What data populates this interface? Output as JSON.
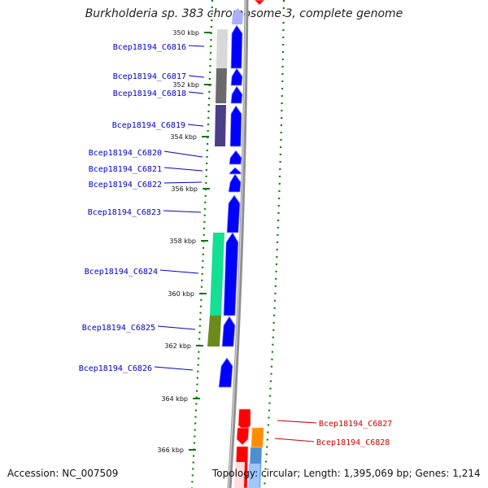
{
  "title": "Burkholderia sp. 383 chromosome 3, complete genome",
  "accession": "Accession: NC_007509",
  "info": "Topology: circular; Length: 1,395,069 bp; Genes: 1,214",
  "colors": {
    "backbone": "#888888",
    "forward_gene": "#0000ff",
    "reverse_gene": "#ff0000",
    "forward_label": "#0000cc",
    "reverse_label": "#cc0000",
    "ring_dots": "#0a7a0a"
  },
  "ticks": [
    {
      "label": "350 kbp"
    },
    {
      "label": "352 kbp"
    },
    {
      "label": "354 kbp"
    },
    {
      "label": "356 kbp"
    },
    {
      "label": "358 kbp"
    },
    {
      "label": "360 kbp"
    },
    {
      "label": "362 kbp"
    },
    {
      "label": "364 kbp"
    },
    {
      "label": "366 kbp"
    }
  ],
  "genes": [
    {
      "name": "Bcep18194_C6816",
      "strand": "forward"
    },
    {
      "name": "Bcep18194_C6817",
      "strand": "forward"
    },
    {
      "name": "Bcep18194_C6818",
      "strand": "forward"
    },
    {
      "name": "Bcep18194_C6819",
      "strand": "forward"
    },
    {
      "name": "Bcep18194_C6820",
      "strand": "forward"
    },
    {
      "name": "Bcep18194_C6821",
      "strand": "forward"
    },
    {
      "name": "Bcep18194_C6822",
      "strand": "forward"
    },
    {
      "name": "Bcep18194_C6823",
      "strand": "forward"
    },
    {
      "name": "Bcep18194_C6824",
      "strand": "forward"
    },
    {
      "name": "Bcep18194_C6825",
      "strand": "forward"
    },
    {
      "name": "Bcep18194_C6826",
      "strand": "forward"
    },
    {
      "name": "Bcep18194_C6827",
      "strand": "reverse"
    },
    {
      "name": "Bcep18194_C6828",
      "strand": "reverse"
    }
  ]
}
